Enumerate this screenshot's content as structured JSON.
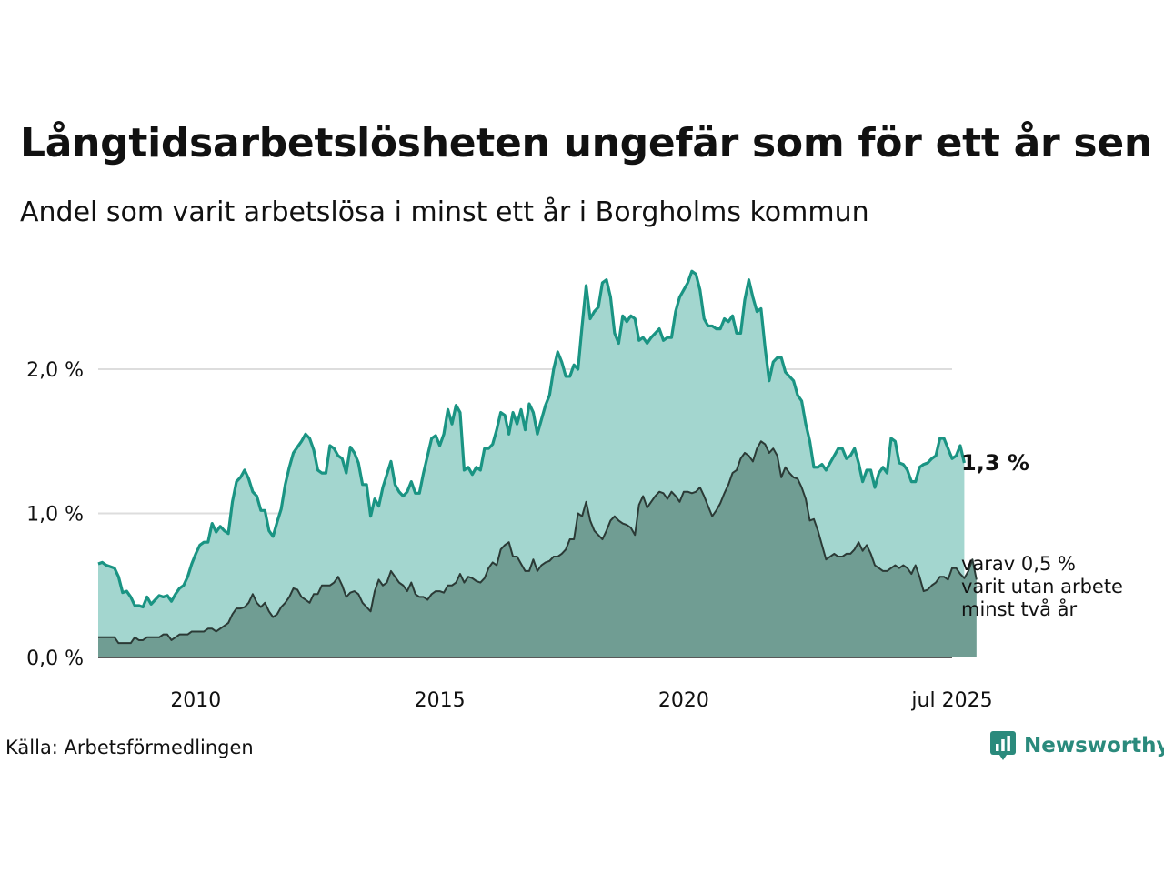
{
  "title": "Långtidsarbetslösheten ungefär som för ett år sen",
  "subtitle": "Andel som varit arbetslösa i minst ett år i Borgholms kommun",
  "source": "Källa: Arbetsförmedlingen",
  "logo_text": "Newsworthy",
  "colors": {
    "total_line": "#1a9483",
    "total_fill": "#a3d6cf",
    "long_line": "#2b3a36",
    "long_fill": "#709d93",
    "grid": "#dddddd",
    "logo": "#2a8a7c"
  },
  "chart_data": {
    "type": "area",
    "x_start": "2008-01",
    "x_end": "2025-07",
    "frequency": "monthly",
    "x_ticks": [
      "2010",
      "2015",
      "2020",
      "jul 2025"
    ],
    "y_ticks": [
      "0,0 %",
      "1,0 %",
      "2,0 %"
    ],
    "ylim": [
      0,
      2.7
    ],
    "grid": true,
    "end_label_total": "1,3 %",
    "end_label_long": [
      "varav 0,5 %",
      "varit utan arbete",
      "minst två år"
    ],
    "series": [
      {
        "values": [
          0.65,
          0.66,
          0.64,
          0.63,
          0.62,
          0.56,
          0.45,
          0.46,
          0.42,
          0.36,
          0.36,
          0.35,
          0.42,
          0.37,
          0.4,
          0.43,
          0.42,
          0.43,
          0.39,
          0.44,
          0.48,
          0.5,
          0.56,
          0.65,
          0.72,
          0.78,
          0.8,
          0.8,
          0.93,
          0.87,
          0.91,
          0.88,
          0.86,
          1.08,
          1.22,
          1.25,
          1.3,
          1.24,
          1.15,
          1.12,
          1.02,
          1.02,
          0.88,
          0.84,
          0.94,
          1.03,
          1.2,
          1.32,
          1.42,
          1.46,
          1.5,
          1.55,
          1.52,
          1.44,
          1.3,
          1.28,
          1.28,
          1.47,
          1.45,
          1.4,
          1.38,
          1.28,
          1.46,
          1.42,
          1.35,
          1.2,
          1.2,
          0.98,
          1.1,
          1.05,
          1.18,
          1.27,
          1.36,
          1.2,
          1.15,
          1.12,
          1.15,
          1.22,
          1.14,
          1.14,
          1.28,
          1.4,
          1.52,
          1.54,
          1.47,
          1.55,
          1.72,
          1.62,
          1.75,
          1.7,
          1.3,
          1.32,
          1.27,
          1.32,
          1.3,
          1.45,
          1.45,
          1.48,
          1.58,
          1.7,
          1.68,
          1.55,
          1.7,
          1.62,
          1.72,
          1.58,
          1.76,
          1.7,
          1.55,
          1.65,
          1.75,
          1.82,
          2.0,
          2.12,
          2.05,
          1.95,
          1.95,
          2.03,
          2.0,
          2.3,
          2.58,
          2.35,
          2.4,
          2.43,
          2.6,
          2.62,
          2.5,
          2.25,
          2.18,
          2.37,
          2.33,
          2.37,
          2.35,
          2.2,
          2.22,
          2.18,
          2.22,
          2.25,
          2.28,
          2.2,
          2.22,
          2.22,
          2.4,
          2.5,
          2.55,
          2.6,
          2.68,
          2.66,
          2.55,
          2.35,
          2.3,
          2.3,
          2.28,
          2.28,
          2.35,
          2.33,
          2.37,
          2.25,
          2.25,
          2.48,
          2.62,
          2.5,
          2.4,
          2.42,
          2.15,
          1.92,
          2.05,
          2.08,
          2.08,
          1.98,
          1.95,
          1.92,
          1.82,
          1.78,
          1.62,
          1.5,
          1.32,
          1.32,
          1.34,
          1.3,
          1.35,
          1.4,
          1.45,
          1.45,
          1.38,
          1.4,
          1.45,
          1.35,
          1.22,
          1.3,
          1.3,
          1.18,
          1.28,
          1.32,
          1.28,
          1.52,
          1.5,
          1.35,
          1.34,
          1.3,
          1.22,
          1.22,
          1.32,
          1.34,
          1.35,
          1.38,
          1.4,
          1.52,
          1.52,
          1.45,
          1.38,
          1.4,
          1.47,
          1.35
        ]
      },
      {
        "values": [
          0.14,
          0.14,
          0.14,
          0.14,
          0.14,
          0.1,
          0.1,
          0.1,
          0.1,
          0.14,
          0.12,
          0.12,
          0.14,
          0.14,
          0.14,
          0.14,
          0.16,
          0.16,
          0.12,
          0.14,
          0.16,
          0.16,
          0.16,
          0.18,
          0.18,
          0.18,
          0.18,
          0.2,
          0.2,
          0.18,
          0.2,
          0.22,
          0.24,
          0.3,
          0.34,
          0.34,
          0.35,
          0.38,
          0.44,
          0.38,
          0.35,
          0.38,
          0.32,
          0.28,
          0.3,
          0.35,
          0.38,
          0.42,
          0.48,
          0.47,
          0.42,
          0.4,
          0.38,
          0.44,
          0.44,
          0.5,
          0.5,
          0.5,
          0.52,
          0.56,
          0.5,
          0.42,
          0.45,
          0.46,
          0.44,
          0.38,
          0.35,
          0.32,
          0.46,
          0.54,
          0.5,
          0.52,
          0.6,
          0.56,
          0.52,
          0.5,
          0.46,
          0.52,
          0.44,
          0.42,
          0.42,
          0.4,
          0.44,
          0.46,
          0.46,
          0.45,
          0.5,
          0.5,
          0.52,
          0.58,
          0.52,
          0.56,
          0.55,
          0.53,
          0.52,
          0.55,
          0.62,
          0.66,
          0.64,
          0.75,
          0.78,
          0.8,
          0.7,
          0.7,
          0.65,
          0.6,
          0.6,
          0.68,
          0.6,
          0.64,
          0.66,
          0.67,
          0.7,
          0.7,
          0.72,
          0.75,
          0.82,
          0.82,
          1.0,
          0.98,
          1.08,
          0.95,
          0.88,
          0.85,
          0.82,
          0.88,
          0.95,
          0.98,
          0.95,
          0.93,
          0.92,
          0.9,
          0.85,
          1.06,
          1.12,
          1.04,
          1.08,
          1.12,
          1.15,
          1.14,
          1.1,
          1.15,
          1.12,
          1.08,
          1.15,
          1.15,
          1.14,
          1.15,
          1.18,
          1.12,
          1.05,
          0.98,
          1.02,
          1.07,
          1.14,
          1.2,
          1.28,
          1.3,
          1.38,
          1.42,
          1.4,
          1.36,
          1.45,
          1.5,
          1.48,
          1.42,
          1.45,
          1.4,
          1.25,
          1.32,
          1.28,
          1.25,
          1.24,
          1.18,
          1.1,
          0.95,
          0.96,
          0.88,
          0.78,
          0.68,
          0.7,
          0.72,
          0.7,
          0.7,
          0.72,
          0.72,
          0.75,
          0.8,
          0.74,
          0.78,
          0.72,
          0.64,
          0.62,
          0.6,
          0.6,
          0.62,
          0.64,
          0.62,
          0.64,
          0.62,
          0.58,
          0.64,
          0.56,
          0.46,
          0.47,
          0.5,
          0.52,
          0.56,
          0.56,
          0.54,
          0.62,
          0.62,
          0.58,
          0.55,
          0.6,
          0.68,
          0.54
        ]
      }
    ]
  }
}
